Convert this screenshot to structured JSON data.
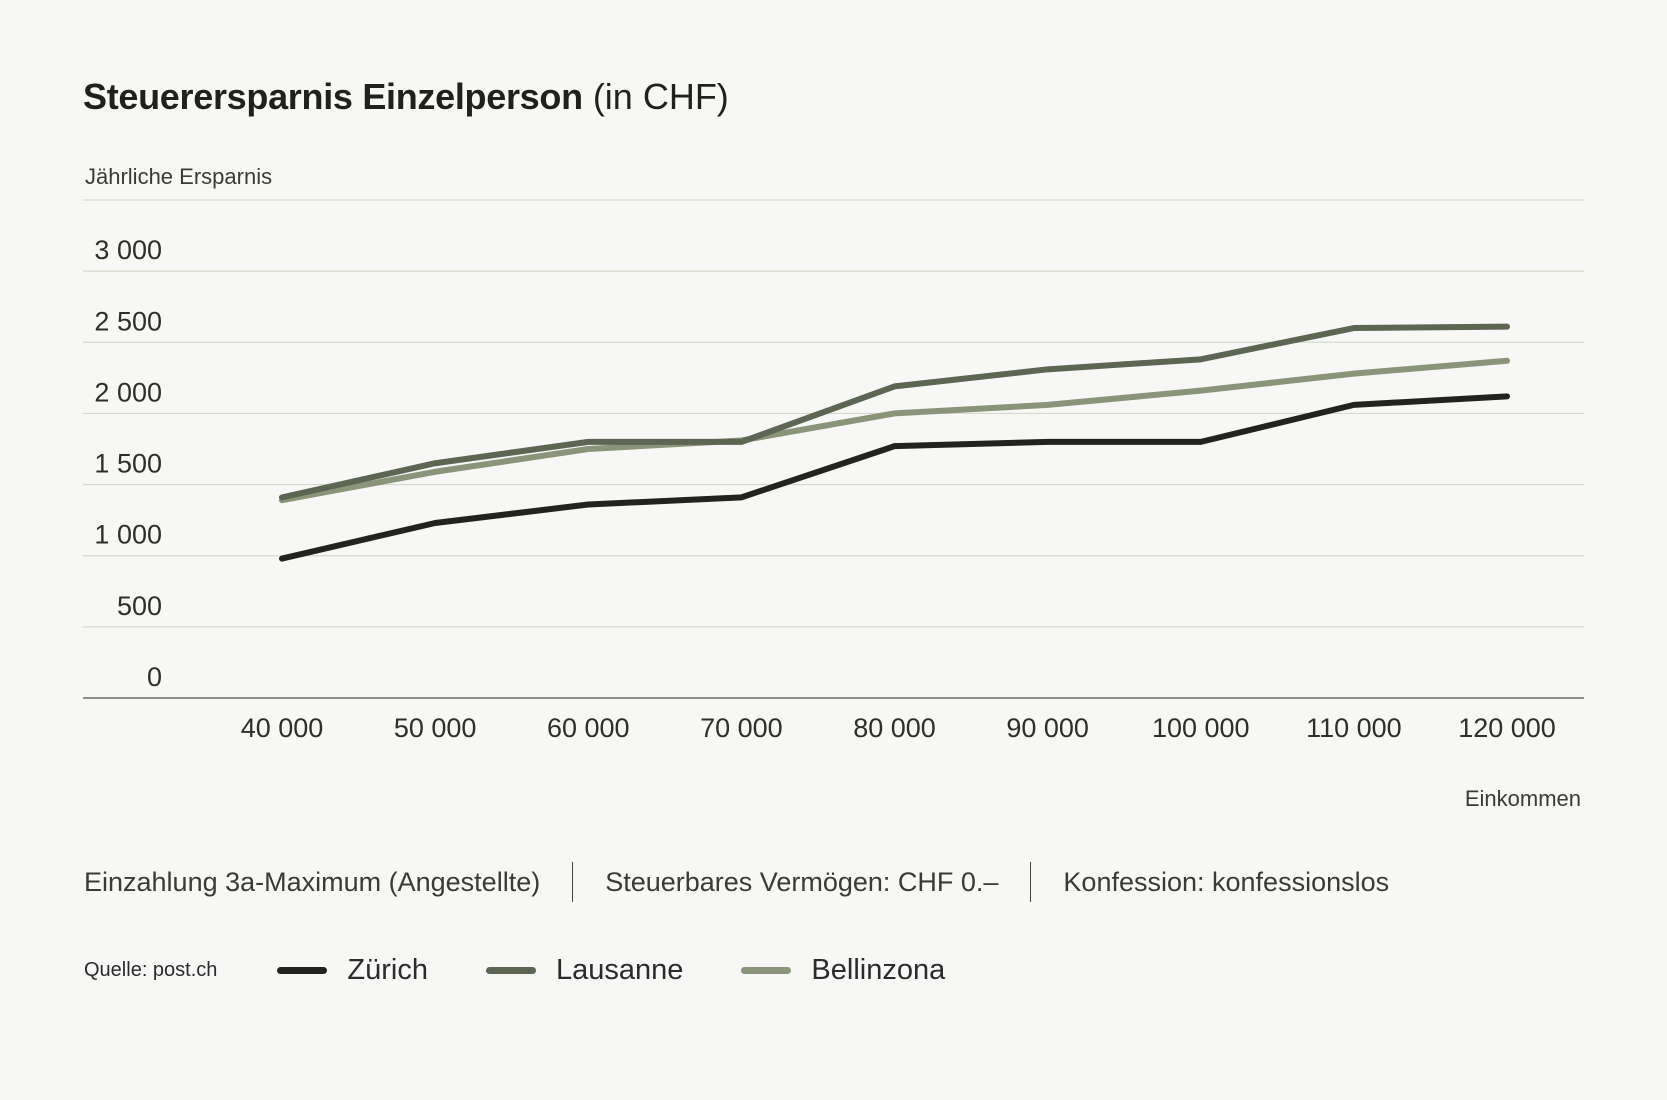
{
  "header": {
    "title": "Steuerersparnis Einzelperson",
    "title_unit": "(in CHF)"
  },
  "chart_data": {
    "type": "line",
    "ylabel": "Jährliche Ersparnis",
    "xlabel": "Einkommen",
    "x": [
      40000,
      50000,
      60000,
      70000,
      80000,
      90000,
      100000,
      110000,
      120000
    ],
    "x_tick_labels": [
      "40 000",
      "50 000",
      "60 000",
      "70 000",
      "80 000",
      "90 000",
      "100 000",
      "110 000",
      "120 000"
    ],
    "y_ticks": [
      0,
      500,
      1000,
      1500,
      2000,
      2500,
      3000
    ],
    "y_tick_labels": [
      "0",
      "500",
      "1 000",
      "1 500",
      "2 000",
      "2 500",
      "3 000"
    ],
    "ylim": [
      0,
      3500
    ],
    "grid": true,
    "legend_placement": "bottom",
    "series": [
      {
        "name": "Zürich",
        "color": "#22231f",
        "values": [
          980,
          1230,
          1360,
          1410,
          1770,
          1800,
          1800,
          2060,
          2120
        ]
      },
      {
        "name": "Lausanne",
        "color": "#5d6553",
        "values": [
          1410,
          1650,
          1800,
          1800,
          2190,
          2310,
          2380,
          2600,
          2610
        ]
      },
      {
        "name": "Bellinzona",
        "color": "#8a9478",
        "values": [
          1390,
          1590,
          1750,
          1810,
          2000,
          2060,
          2160,
          2280,
          2370
        ]
      }
    ]
  },
  "notes": {
    "deposit": "Einzahlung 3a-Maximum (Angestellte)",
    "wealth": "Steuerbares Vermögen: CHF 0.–",
    "confession": "Konfession: konfessionslos"
  },
  "footer": {
    "source": "Quelle: post.ch"
  }
}
